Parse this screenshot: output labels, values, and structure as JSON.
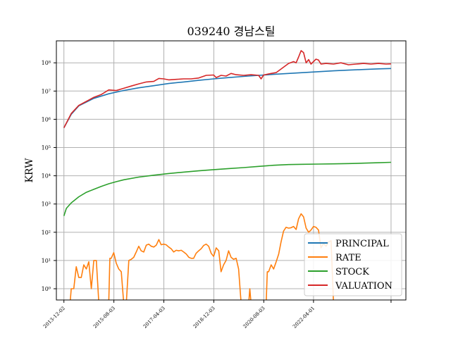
{
  "chart_data": {
    "type": "line",
    "title": "039240 경남스틸",
    "xlabel": "",
    "ylabel": "KRW",
    "yscale": "log",
    "ylim": [
      0.4,
      600000000
    ],
    "xlim": [
      "2013-09-01",
      "2025-05-01"
    ],
    "x_ticks": [
      "2013-12-02",
      "2015-08-03",
      "2017-04-03",
      "2018-12-03",
      "2020-08-03",
      "2022-04-01"
    ],
    "y_ticks": [
      {
        "value": 1,
        "label": "10⁰"
      },
      {
        "value": 10,
        "label": "10¹"
      },
      {
        "value": 100,
        "label": "10²"
      },
      {
        "value": 1000,
        "label": "10³"
      },
      {
        "value": 10000,
        "label": "10⁴"
      },
      {
        "value": 100000,
        "label": "10⁵"
      },
      {
        "value": 1000000,
        "label": "10⁶"
      },
      {
        "value": 10000000,
        "label": "10⁷"
      },
      {
        "value": 100000000,
        "label": "10⁸"
      }
    ],
    "grid": true,
    "legend_position": "lower-right",
    "series": [
      {
        "name": "PRINCIPAL",
        "color": "#1f77b4",
        "points": [
          [
            "2013-12-02",
            500000
          ],
          [
            "2014-03-01",
            1500000
          ],
          [
            "2014-06-01",
            3000000
          ],
          [
            "2014-12-01",
            5500000
          ],
          [
            "2015-06-01",
            8000000
          ],
          [
            "2015-12-01",
            10500000
          ],
          [
            "2016-06-01",
            13000000
          ],
          [
            "2016-12-01",
            15500000
          ],
          [
            "2017-06-01",
            18500000
          ],
          [
            "2017-12-01",
            21000000
          ],
          [
            "2018-06-01",
            24000000
          ],
          [
            "2018-12-01",
            27000000
          ],
          [
            "2019-06-01",
            30000000
          ],
          [
            "2019-12-01",
            33000000
          ],
          [
            "2020-06-01",
            36000000
          ],
          [
            "2020-12-01",
            39000000
          ],
          [
            "2021-06-01",
            42000000
          ],
          [
            "2021-12-01",
            45000000
          ],
          [
            "2022-06-01",
            48500000
          ],
          [
            "2022-12-01",
            52000000
          ],
          [
            "2023-06-01",
            55000000
          ],
          [
            "2023-12-01",
            58000000
          ],
          [
            "2024-06-01",
            61000000
          ],
          [
            "2024-11-01",
            63000000
          ]
        ]
      },
      {
        "name": "RATE",
        "color": "#ff7f0e",
        "segments": [
          [
            [
              "2014-02-15",
              0.3
            ],
            [
              "2014-03-01",
              1
            ],
            [
              "2014-04-01",
              1
            ],
            [
              "2014-05-01",
              6
            ],
            [
              "2014-06-01",
              2.5
            ],
            [
              "2014-07-01",
              2.5
            ],
            [
              "2014-08-01",
              7
            ],
            [
              "2014-09-01",
              5
            ],
            [
              "2014-10-01",
              9
            ],
            [
              "2014-11-01",
              1
            ],
            [
              "2014-12-01",
              10
            ],
            [
              "2015-01-01",
              10
            ],
            [
              "2015-02-01",
              0.3
            ]
          ],
          [
            [
              "2015-06-01",
              0.3
            ],
            [
              "2015-06-15",
              12
            ],
            [
              "2015-07-01",
              12
            ],
            [
              "2015-08-01",
              19
            ],
            [
              "2015-09-01",
              8
            ],
            [
              "2015-10-01",
              5
            ],
            [
              "2015-11-01",
              4
            ],
            [
              "2015-12-01",
              0.3
            ]
          ],
          [
            [
              "2016-01-01",
              0.3
            ],
            [
              "2016-02-01",
              10
            ],
            [
              "2016-03-01",
              11
            ],
            [
              "2016-04-01",
              13
            ],
            [
              "2016-05-01",
              20
            ],
            [
              "2016-06-01",
              32
            ],
            [
              "2016-07-01",
              22
            ],
            [
              "2016-08-01",
              20
            ],
            [
              "2016-09-01",
              35
            ],
            [
              "2016-10-01",
              38
            ],
            [
              "2016-11-01",
              32
            ],
            [
              "2016-12-01",
              30
            ],
            [
              "2017-01-01",
              35
            ],
            [
              "2017-02-01",
              55
            ],
            [
              "2017-03-01",
              36
            ],
            [
              "2017-04-01",
              38
            ],
            [
              "2017-05-01",
              36
            ],
            [
              "2017-06-01",
              30
            ],
            [
              "2017-07-01",
              26
            ],
            [
              "2017-08-01",
              20
            ],
            [
              "2017-09-01",
              23
            ],
            [
              "2017-10-01",
              22
            ],
            [
              "2017-11-01",
              23
            ],
            [
              "2017-12-01",
              20
            ],
            [
              "2018-01-01",
              17
            ],
            [
              "2018-02-01",
              13
            ],
            [
              "2018-03-01",
              12
            ],
            [
              "2018-04-01",
              12
            ],
            [
              "2018-05-01",
              18
            ],
            [
              "2018-06-01",
              22
            ],
            [
              "2018-07-01",
              26
            ],
            [
              "2018-08-01",
              34
            ],
            [
              "2018-09-01",
              38
            ],
            [
              "2018-10-01",
              32
            ],
            [
              "2018-11-01",
              18
            ],
            [
              "2018-12-01",
              14
            ],
            [
              "2019-01-01",
              28
            ],
            [
              "2019-02-01",
              22
            ],
            [
              "2019-03-01",
              4
            ],
            [
              "2019-04-01",
              7
            ],
            [
              "2019-05-01",
              10
            ],
            [
              "2019-06-01",
              22
            ],
            [
              "2019-07-01",
              13
            ],
            [
              "2019-08-01",
              11
            ],
            [
              "2019-09-01",
              12
            ],
            [
              "2019-10-01",
              5
            ],
            [
              "2019-11-01",
              0.3
            ]
          ],
          [
            [
              "2020-02-01",
              0.3
            ],
            [
              "2020-02-15",
              1
            ],
            [
              "2020-03-01",
              0.3
            ]
          ],
          [
            [
              "2020-09-01",
              0.3
            ],
            [
              "2020-09-15",
              4
            ],
            [
              "2020-10-01",
              4
            ],
            [
              "2020-11-01",
              7
            ],
            [
              "2020-12-01",
              5
            ],
            [
              "2021-01-01",
              9
            ],
            [
              "2021-02-01",
              17
            ],
            [
              "2021-03-01",
              45
            ],
            [
              "2021-04-01",
              110
            ],
            [
              "2021-05-01",
              150
            ],
            [
              "2021-06-01",
              140
            ],
            [
              "2021-07-01",
              145
            ],
            [
              "2021-08-01",
              160
            ],
            [
              "2021-09-01",
              125
            ],
            [
              "2021-10-01",
              300
            ],
            [
              "2021-11-01",
              450
            ],
            [
              "2021-12-01",
              350
            ],
            [
              "2022-01-01",
              140
            ],
            [
              "2022-02-01",
              100
            ],
            [
              "2022-03-01",
              120
            ],
            [
              "2022-04-01",
              160
            ],
            [
              "2022-05-01",
              150
            ],
            [
              "2022-06-01",
              120
            ],
            [
              "2022-07-01",
              28
            ],
            [
              "2022-08-01",
              40
            ],
            [
              "2022-09-01",
              32
            ],
            [
              "2022-10-01",
              45
            ],
            [
              "2022-11-01",
              50
            ],
            [
              "2022-12-01",
              0.3
            ]
          ]
        ]
      },
      {
        "name": "STOCK",
        "color": "#2ca02c",
        "points": [
          [
            "2013-12-02",
            380
          ],
          [
            "2014-01-01",
            700
          ],
          [
            "2014-03-01",
            1100
          ],
          [
            "2014-06-01",
            1800
          ],
          [
            "2014-09-01",
            2600
          ],
          [
            "2014-12-01",
            3300
          ],
          [
            "2015-03-01",
            4200
          ],
          [
            "2015-06-01",
            5200
          ],
          [
            "2015-09-01",
            6200
          ],
          [
            "2015-12-01",
            7200
          ],
          [
            "2016-06-01",
            9000
          ],
          [
            "2016-12-01",
            10500
          ],
          [
            "2017-06-01",
            12000
          ],
          [
            "2017-12-01",
            13500
          ],
          [
            "2018-06-01",
            15000
          ],
          [
            "2018-12-01",
            16500
          ],
          [
            "2019-06-01",
            18000
          ],
          [
            "2019-12-01",
            19500
          ],
          [
            "2020-06-01",
            21500
          ],
          [
            "2020-12-01",
            23500
          ],
          [
            "2021-06-01",
            25000
          ],
          [
            "2021-12-01",
            25500
          ],
          [
            "2022-06-01",
            26000
          ],
          [
            "2022-12-01",
            26500
          ],
          [
            "2023-06-01",
            27000
          ],
          [
            "2023-12-01",
            28000
          ],
          [
            "2024-06-01",
            29000
          ],
          [
            "2024-11-01",
            30000
          ]
        ]
      },
      {
        "name": "VALUATION",
        "color": "#d62728",
        "points": [
          [
            "2013-12-02",
            500000
          ],
          [
            "2014-03-01",
            1600000
          ],
          [
            "2014-06-01",
            3100000
          ],
          [
            "2014-09-01",
            4300000
          ],
          [
            "2014-12-01",
            6000000
          ],
          [
            "2015-03-01",
            7500000
          ],
          [
            "2015-06-01",
            11000000
          ],
          [
            "2015-09-01",
            10500000
          ],
          [
            "2015-12-01",
            12500000
          ],
          [
            "2016-03-01",
            15000000
          ],
          [
            "2016-06-01",
            18000000
          ],
          [
            "2016-09-01",
            21000000
          ],
          [
            "2016-12-01",
            22000000
          ],
          [
            "2017-02-01",
            28000000
          ],
          [
            "2017-04-01",
            27000000
          ],
          [
            "2017-06-01",
            25000000
          ],
          [
            "2017-09-01",
            26000000
          ],
          [
            "2017-12-01",
            27000000
          ],
          [
            "2018-03-01",
            27000000
          ],
          [
            "2018-06-01",
            29000000
          ],
          [
            "2018-09-01",
            36000000
          ],
          [
            "2018-12-01",
            37000000
          ],
          [
            "2019-01-01",
            30000000
          ],
          [
            "2019-03-01",
            36000000
          ],
          [
            "2019-05-01",
            34000000
          ],
          [
            "2019-07-01",
            42000000
          ],
          [
            "2019-09-01",
            38000000
          ],
          [
            "2019-12-01",
            36000000
          ],
          [
            "2020-03-01",
            38000000
          ],
          [
            "2020-06-01",
            36000000
          ],
          [
            "2020-07-01",
            27000000
          ],
          [
            "2020-08-01",
            37000000
          ],
          [
            "2020-11-01",
            42000000
          ],
          [
            "2021-01-01",
            45000000
          ],
          [
            "2021-04-01",
            70000000
          ],
          [
            "2021-06-01",
            95000000
          ],
          [
            "2021-08-01",
            110000000
          ],
          [
            "2021-09-01",
            100000000
          ],
          [
            "2021-10-01",
            160000000
          ],
          [
            "2021-11-01",
            270000000
          ],
          [
            "2021-12-01",
            230000000
          ],
          [
            "2022-01-01",
            100000000
          ],
          [
            "2022-02-01",
            130000000
          ],
          [
            "2022-03-01",
            90000000
          ],
          [
            "2022-05-01",
            135000000
          ],
          [
            "2022-06-01",
            125000000
          ],
          [
            "2022-07-01",
            90000000
          ],
          [
            "2022-09-01",
            95000000
          ],
          [
            "2022-12-01",
            90000000
          ],
          [
            "2023-03-01",
            100000000
          ],
          [
            "2023-06-01",
            85000000
          ],
          [
            "2023-09-01",
            90000000
          ],
          [
            "2023-12-01",
            95000000
          ],
          [
            "2024-03-01",
            90000000
          ],
          [
            "2024-06-01",
            95000000
          ],
          [
            "2024-09-01",
            90000000
          ],
          [
            "2024-11-01",
            92000000
          ]
        ]
      }
    ]
  }
}
